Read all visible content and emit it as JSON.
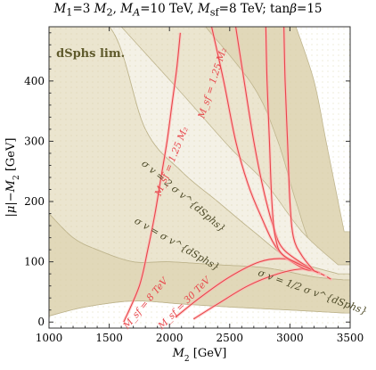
{
  "chart_data": {
    "type": "line",
    "title": "M₁=3 M₂, M_A=10 TeV, M_sf=8 TeV; tanβ=15",
    "xlabel": "M₂ [GeV]",
    "ylabel": "|μ|−M₂ [GeV]",
    "xlim": [
      1000,
      3500
    ],
    "ylim": [
      -10,
      490
    ],
    "xticks": [
      1000,
      1500,
      2000,
      2500,
      3000,
      3500
    ],
    "yticks": [
      0,
      100,
      200,
      300,
      400
    ],
    "grid": false,
    "legend": "dSphs lim.",
    "bands": [
      {
        "name": "σ v = 2 σ v^{dSphs}",
        "lower": [
          [
            1000,
            490
          ],
          [
            1500,
            490
          ],
          [
            1800,
            320
          ],
          [
            2100,
            250
          ],
          [
            2400,
            200
          ],
          [
            2700,
            150
          ],
          [
            3000,
            105
          ],
          [
            3400,
            80
          ]
        ],
        "upper": [
          [
            1600,
            490
          ],
          [
            2100,
            380
          ],
          [
            2500,
            290
          ],
          [
            2800,
            230
          ],
          [
            3100,
            150
          ],
          [
            3400,
            95
          ]
        ]
      },
      {
        "name": "σ v = σ v^{dSphs}",
        "lower": [
          [
            1000,
            180
          ],
          [
            1200,
            140
          ],
          [
            1400,
            120
          ],
          [
            1700,
            100
          ],
          [
            2000,
            100
          ],
          [
            2400,
            95
          ],
          [
            2800,
            90
          ],
          [
            3200,
            75
          ],
          [
            3450,
            70
          ]
        ],
        "upper": [
          [
            2300,
            490
          ],
          [
            2700,
            390
          ],
          [
            2900,
            300
          ],
          [
            3050,
            200
          ],
          [
            3200,
            120
          ],
          [
            3450,
            85
          ]
        ]
      },
      {
        "name": "σ v = 1/2 σ v^{dSphs}",
        "lower": [
          [
            1000,
            10
          ],
          [
            1300,
            25
          ],
          [
            1700,
            35
          ],
          [
            2100,
            30
          ],
          [
            2500,
            25
          ],
          [
            3000,
            20
          ],
          [
            3450,
            15
          ]
        ],
        "upper": [
          [
            3050,
            490
          ],
          [
            3200,
            400
          ],
          [
            3300,
            300
          ],
          [
            3400,
            200
          ],
          [
            3450,
            150
          ]
        ]
      }
    ],
    "red_curves": [
      {
        "name": "M_sf = 8 TeV",
        "points": [
          [
            2050,
            8
          ],
          [
            2250,
            40
          ],
          [
            2500,
            75
          ],
          [
            2750,
            100
          ],
          [
            2950,
            105
          ],
          [
            3100,
            95
          ],
          [
            3250,
            80
          ]
        ]
      },
      {
        "name": "M_sf = 30 TeV",
        "points": [
          [
            2200,
            5
          ],
          [
            2400,
            30
          ],
          [
            2650,
            60
          ],
          [
            2900,
            80
          ],
          [
            3100,
            88
          ],
          [
            3250,
            82
          ]
        ]
      },
      {
        "name": "M_sf = 1.25 M₂",
        "points": [
          [
            1620,
            0
          ],
          [
            1750,
            60
          ],
          [
            1820,
            120
          ],
          [
            1880,
            180
          ],
          [
            1930,
            240
          ],
          [
            1980,
            300
          ],
          [
            2020,
            360
          ],
          [
            2060,
            420
          ],
          [
            2090,
            480
          ]
        ]
      },
      {
        "name": "M_sf = 1.25 M₂",
        "points": [
          [
            2350,
            490
          ],
          [
            2450,
            400
          ],
          [
            2550,
            300
          ],
          [
            2650,
            230
          ],
          [
            2750,
            180
          ],
          [
            2900,
            120
          ],
          [
            3100,
            90
          ],
          [
            3200,
            85
          ]
        ]
      },
      {
        "name": "",
        "points": [
          [
            2550,
            490
          ],
          [
            2620,
            400
          ],
          [
            2700,
            300
          ],
          [
            2780,
            220
          ],
          [
            2860,
            160
          ],
          [
            2950,
            120
          ],
          [
            3200,
            85
          ]
        ]
      },
      {
        "name": "",
        "points": [
          [
            2800,
            490
          ],
          [
            2810,
            400
          ],
          [
            2830,
            300
          ],
          [
            2850,
            200
          ],
          [
            2880,
            140
          ],
          [
            2950,
            110
          ],
          [
            3200,
            85
          ]
        ]
      },
      {
        "name": "",
        "points": [
          [
            2950,
            490
          ],
          [
            2960,
            400
          ],
          [
            2980,
            300
          ],
          [
            3000,
            200
          ],
          [
            3030,
            140
          ],
          [
            3100,
            110
          ],
          [
            3200,
            85
          ]
        ]
      },
      {
        "name": "",
        "points": [
          [
            3200,
            85
          ],
          [
            3280,
            78
          ],
          [
            3350,
            70
          ]
        ]
      }
    ],
    "labels": {
      "band2x": "σ v = 2 σ v^{dSphs}",
      "band1x": "σ v = σ v^{dSphs}",
      "bandhalf": "σ v = 1/2 σ v^{dSphs}",
      "msf8": "M_sf = 8 TeV",
      "msf30": "M_sf = 30 TeV",
      "msf125a": "M_sf = 1.25 M₂",
      "msf125b": "M_sf = 1.25 M₂"
    },
    "colors": {
      "bandOuter": "#f4f1e6",
      "bandMid": "#ebe5cf",
      "bandInner": "#e1d8b9",
      "red": "#e8454a",
      "bandEdge": "#bfb58e",
      "legendText": "#5f5a2c"
    }
  }
}
